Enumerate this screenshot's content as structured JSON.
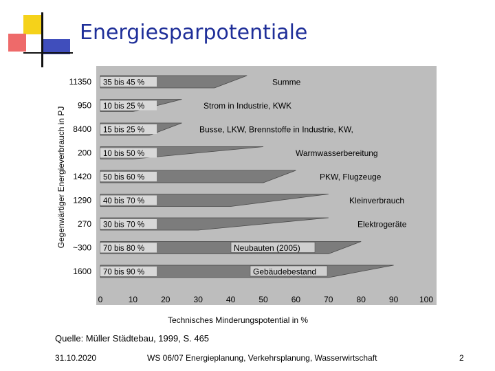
{
  "slide": {
    "title": "Energiesparpotentiale",
    "source": "Quelle: Müller Städtebau, 1999, S. 465",
    "footer_date": "31.10.2020",
    "footer_center": "WS 06/07 Energieplanung, Verkehrsplanung, Wasserwirtschaft",
    "page_number": "2"
  },
  "colors": {
    "deco_yellow": "#f5d21a",
    "deco_red": "#ee6a6a",
    "deco_blue": "#1e2fb0",
    "title": "#1f2f99",
    "chart_bg": "#bdbdbd",
    "band": "#7c7c7c",
    "label_box": "#d8d8d8"
  },
  "chart_data": {
    "type": "bar",
    "xlabel": "Technisches Minderungspotential in %",
    "ylabel": "Gegenwärtiger Energieverbrauch in PJ",
    "xlim": [
      0,
      100
    ],
    "xticks": [
      0,
      10,
      20,
      30,
      40,
      50,
      60,
      70,
      80,
      90,
      100
    ],
    "rows": [
      {
        "consumption": "11350",
        "range": "35 bis 45 %",
        "name": "Summe",
        "min": 35,
        "max": 45
      },
      {
        "consumption": "950",
        "range": "10 bis 25 %",
        "name": "Strom in Industrie, KWK",
        "min": 10,
        "max": 25
      },
      {
        "consumption": "8400",
        "range": "15 bis 25 %",
        "name": "Busse, LKW, Brennstoffe in Industrie, KW,",
        "min": 15,
        "max": 25
      },
      {
        "consumption": "200",
        "range": "10 bis 50 %",
        "name": "Warmwasserbereitung",
        "min": 10,
        "max": 50
      },
      {
        "consumption": "1420",
        "range": "50 bis 60 %",
        "name": "PKW, Flugzeuge",
        "min": 50,
        "max": 60
      },
      {
        "consumption": "1290",
        "range": "40 bis 70 %",
        "name": "Kleinverbrauch",
        "min": 40,
        "max": 70
      },
      {
        "consumption": "270",
        "range": "30 bis 70 %",
        "name": "Elektrogeräte",
        "min": 30,
        "max": 70
      },
      {
        "consumption": "~300",
        "range": "70 bis 80 %",
        "name": "Neubauten (2005)",
        "min": 70,
        "max": 80
      },
      {
        "consumption": "1600",
        "range": "70 bis 90 %",
        "name": "Gebäudebestand",
        "min": 70,
        "max": 90
      }
    ]
  }
}
